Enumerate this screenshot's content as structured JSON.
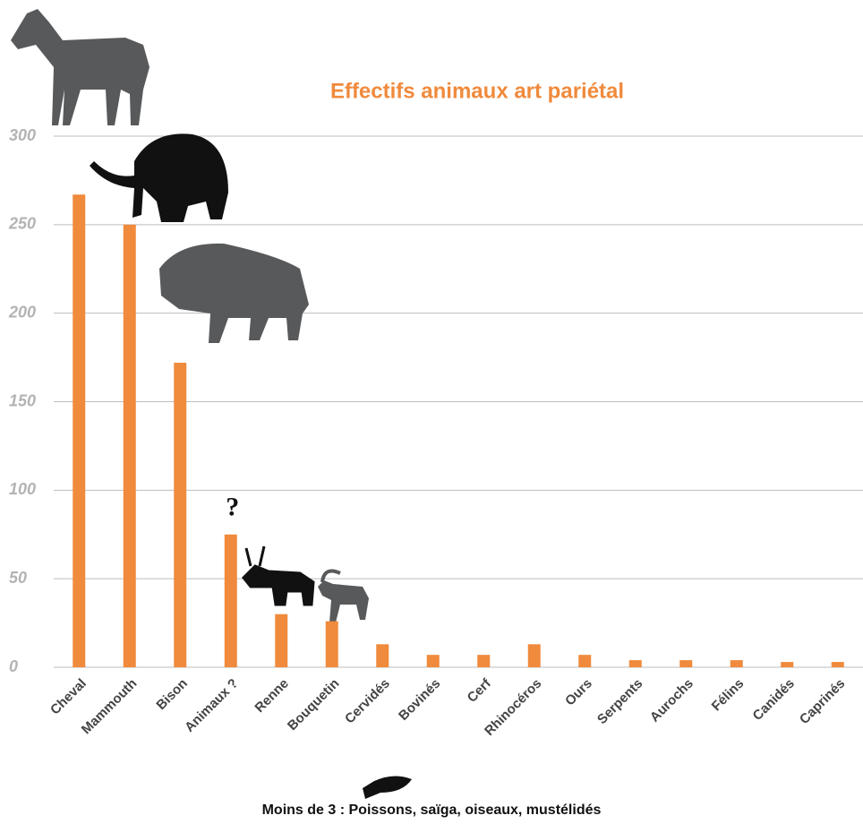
{
  "chart_data": {
    "type": "bar",
    "title": "Effectifs animaux art pariétal",
    "categories": [
      "Cheval",
      "Mammouth",
      "Bison",
      "Animaux ?",
      "Renne",
      "Bouquetin",
      "Cervidés",
      "Bovinés",
      "Cerf",
      "Rhinocéros",
      "Ours",
      "Serpents",
      "Aurochs",
      "Félins",
      "Canidés",
      "Caprinés"
    ],
    "values": [
      267,
      250,
      172,
      75,
      30,
      26,
      13,
      7,
      7,
      13,
      7,
      4,
      4,
      4,
      3,
      3
    ],
    "color": "#f08a3c",
    "ylim": [
      0,
      300
    ],
    "yticks": [
      0,
      50,
      100,
      150,
      200,
      250,
      300
    ],
    "grid": true,
    "annotation": "?",
    "footnote": "Moins de 3 : Poissons, saïga, oiseaux, mustélidés"
  }
}
